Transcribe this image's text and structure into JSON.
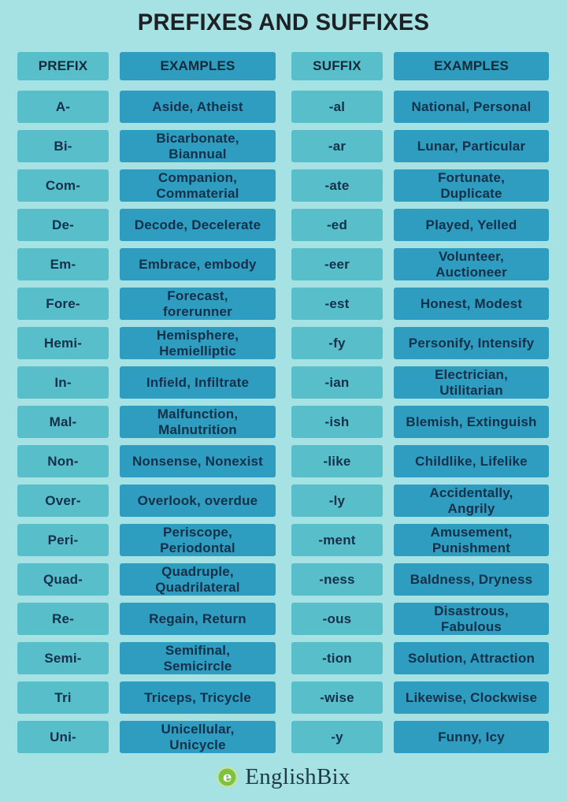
{
  "title": "PREFIXES AND SUFFIXES",
  "colors": {
    "background": "#a6e1e4",
    "cell_light": "#58bfca",
    "cell_dark": "#2e9dbf",
    "text_dark_navy": "#14304a",
    "logo_green": "#7fc241"
  },
  "table": {
    "headers": [
      "PREFIX",
      "EXAMPLES",
      "SUFFIX",
      "EXAMPLES"
    ],
    "rows": [
      {
        "prefix": "A-",
        "prefix_examples": "Aside, Atheist",
        "suffix": "-al",
        "suffix_examples": "National, Personal"
      },
      {
        "prefix": "Bi-",
        "prefix_examples": "Bicarbonate,\nBiannual",
        "suffix": "-ar",
        "suffix_examples": "Lunar, Particular"
      },
      {
        "prefix": "Com-",
        "prefix_examples": "Companion,\nCommaterial",
        "suffix": "-ate",
        "suffix_examples": "Fortunate,\nDuplicate"
      },
      {
        "prefix": "De-",
        "prefix_examples": "Decode, Decelerate",
        "suffix": "-ed",
        "suffix_examples": "Played, Yelled"
      },
      {
        "prefix": "Em-",
        "prefix_examples": "Embrace, embody",
        "suffix": "-eer",
        "suffix_examples": "Volunteer,\nAuctioneer"
      },
      {
        "prefix": "Fore-",
        "prefix_examples": "Forecast,\nforerunner",
        "suffix": "-est",
        "suffix_examples": "Honest, Modest"
      },
      {
        "prefix": "Hemi-",
        "prefix_examples": "Hemisphere,\nHemielliptic",
        "suffix": "-fy",
        "suffix_examples": "Personify, Intensify"
      },
      {
        "prefix": "In-",
        "prefix_examples": "Infield, Infiltrate",
        "suffix": "-ian",
        "suffix_examples": "Electrician,\nUtilitarian"
      },
      {
        "prefix": "Mal-",
        "prefix_examples": "Malfunction,\nMalnutrition",
        "suffix": "-ish",
        "suffix_examples": "Blemish, Extinguish"
      },
      {
        "prefix": "Non-",
        "prefix_examples": "Nonsense, Nonexist",
        "suffix": "-like",
        "suffix_examples": "Childlike, Lifelike"
      },
      {
        "prefix": "Over-",
        "prefix_examples": "Overlook, overdue",
        "suffix": "-ly",
        "suffix_examples": "Accidentally,\nAngrily"
      },
      {
        "prefix": "Peri-",
        "prefix_examples": "Periscope,\nPeriodontal",
        "suffix": "-ment",
        "suffix_examples": "Amusement,\nPunishment"
      },
      {
        "prefix": "Quad-",
        "prefix_examples": "Quadruple,\nQuadrilateral",
        "suffix": "-ness",
        "suffix_examples": "Baldness, Dryness"
      },
      {
        "prefix": "Re-",
        "prefix_examples": "Regain, Return",
        "suffix": "-ous",
        "suffix_examples": "Disastrous,\nFabulous"
      },
      {
        "prefix": "Semi-",
        "prefix_examples": "Semifinal,\nSemicircle",
        "suffix": "-tion",
        "suffix_examples": "Solution, Attraction"
      },
      {
        "prefix": "Tri",
        "prefix_examples": "Triceps, Tricycle",
        "suffix": "-wise",
        "suffix_examples": "Likewise, Clockwise"
      },
      {
        "prefix": "Uni-",
        "prefix_examples": "Unicellular,\nUnicycle",
        "suffix": "-y",
        "suffix_examples": "Funny, Icy"
      }
    ]
  },
  "footer": {
    "brand": "EnglishBix",
    "logo_letter": "e"
  }
}
